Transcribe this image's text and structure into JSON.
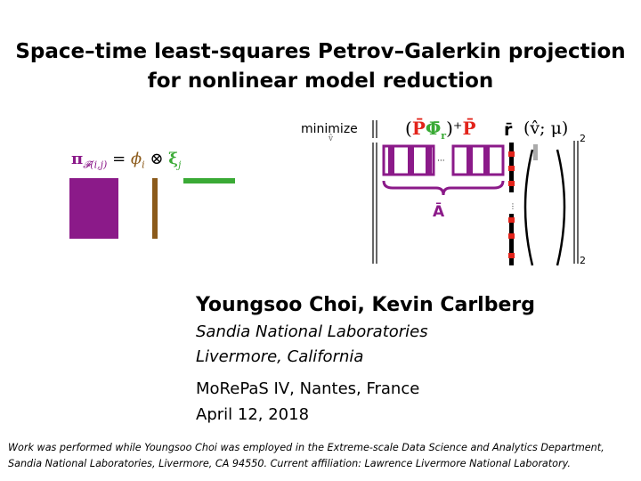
{
  "title": {
    "line1": "Space–time least-squares Petrov–Galerkin projection",
    "line2": "for nonlinear model reduction"
  },
  "tensor_equation": {
    "pi": "π",
    "pi_subscript": "𝓕(i,j)",
    "equals": "=",
    "phi": "ϕ",
    "phi_subscript": "i",
    "otimes": "⊗",
    "xi": "ξ",
    "xi_subscript": "j",
    "colors": {
      "pi": "#8b1a89",
      "phi": "#8b5a1a",
      "xi": "#3aaa35"
    }
  },
  "optimization": {
    "minimize": "minimize",
    "minimize_sub": "v̂",
    "open_paren": "(",
    "P_bar": "P̄",
    "Phi_bar": "Φ̄",
    "Phi_sub": "r",
    "close_paren_plus": ")⁺",
    "P_bar_2": "P̄",
    "r_bar": "r̄",
    "args": "(v̂; μ)",
    "norm_sub": "2",
    "dots": "···",
    "A_bar": "Ā",
    "colors": {
      "P": "#e2231a",
      "Phi": "#3aaa35",
      "A": "#8b1a89",
      "v": "#aaaaaa"
    }
  },
  "authors": "Youngsoo Choi, Kevin Carlberg",
  "affiliation_line1": "Sandia National Laboratories",
  "affiliation_line2": "Livermore, California",
  "conference": "MoRePaS IV, Nantes, France",
  "date": "April 12, 2018",
  "footnote": {
    "line1": "Work was performed while Youngsoo Choi was employed in the Extreme-scale Data Science and Analytics Department,",
    "line2": "Sandia National Laboratories, Livermore, CA 94550. Current affiliation: Lawrence Livermore National Laboratory."
  }
}
